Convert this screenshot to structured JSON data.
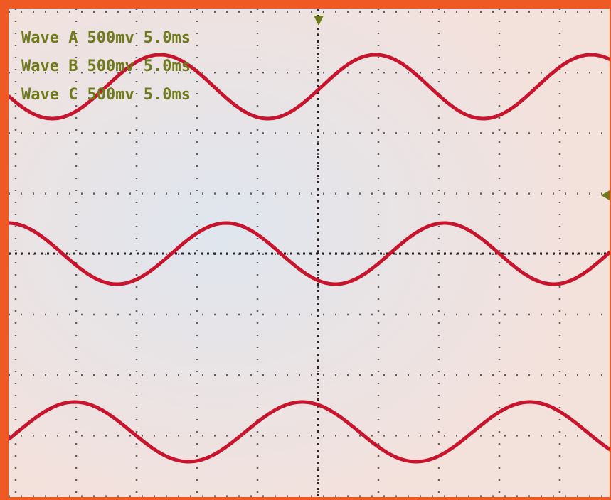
{
  "channels": [
    {
      "name": "Wave A",
      "scale": "500mv",
      "timebase": "5.0ms"
    },
    {
      "name": "Wave B",
      "scale": "500mv",
      "timebase": "5.0ms"
    },
    {
      "name": "Wave C",
      "scale": "500mv",
      "timebase": "5.0ms"
    }
  ]
}
